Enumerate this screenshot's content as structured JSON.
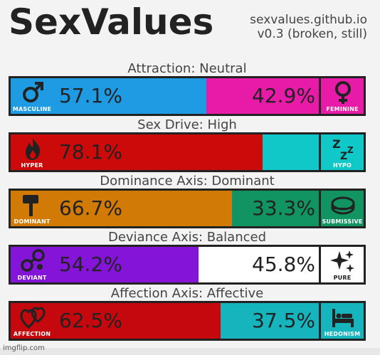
{
  "header": {
    "title": "SexValues",
    "site": "sexvalues.github.io",
    "version": "v0.3 (broken, still)"
  },
  "axes": [
    {
      "label": "Attraction: Neutral",
      "left": {
        "name": "MASCULINE",
        "icon": "male-symbol-icon",
        "color": "#1e9be3",
        "percent": "57.1%",
        "fraction": 0.571
      },
      "right": {
        "name": "FEMININE",
        "icon": "female-symbol-icon",
        "color": "#e81aa8",
        "percent": "42.9%",
        "fraction": 0.429
      }
    },
    {
      "label": "Sex Drive: High",
      "left": {
        "name": "HYPER",
        "icon": "fire-icon",
        "color": "#cc0a0a",
        "percent": "78.1%",
        "fraction": 0.781
      },
      "right": {
        "name": "HYPO",
        "icon": "sleep-zzz-icon",
        "color": "#10c8c8",
        "percent": "",
        "fraction": 0.219
      }
    },
    {
      "label": "Dominance Axis: Dominant",
      "left": {
        "name": "DOMINANT",
        "icon": "gavel-icon",
        "color": "#d17a05",
        "percent": "66.7%",
        "fraction": 0.667
      },
      "right": {
        "name": "SUBMISSIVE",
        "icon": "collar-icon",
        "color": "#119462",
        "percent": "33.3%",
        "fraction": 0.333
      }
    },
    {
      "label": "Deviance Axis: Balanced",
      "left": {
        "name": "DEVIANT",
        "icon": "handcuffs-icon",
        "color": "#8414d8",
        "percent": "54.2%",
        "fraction": 0.542
      },
      "right": {
        "name": "PURE",
        "icon": "sparkles-icon",
        "color": "#ffffff",
        "percent": "45.8%",
        "fraction": 0.458
      }
    },
    {
      "label": "Affection Axis: Affective",
      "left": {
        "name": "AFFECTION",
        "icon": "hearts-icon",
        "color": "#c4080d",
        "percent": "62.5%",
        "fraction": 0.625
      },
      "right": {
        "name": "HEDONISM",
        "icon": "bed-icon",
        "color": "#16b5bd",
        "percent": "37.5%",
        "fraction": 0.375
      }
    }
  ],
  "watermark": "imgflip.com"
}
